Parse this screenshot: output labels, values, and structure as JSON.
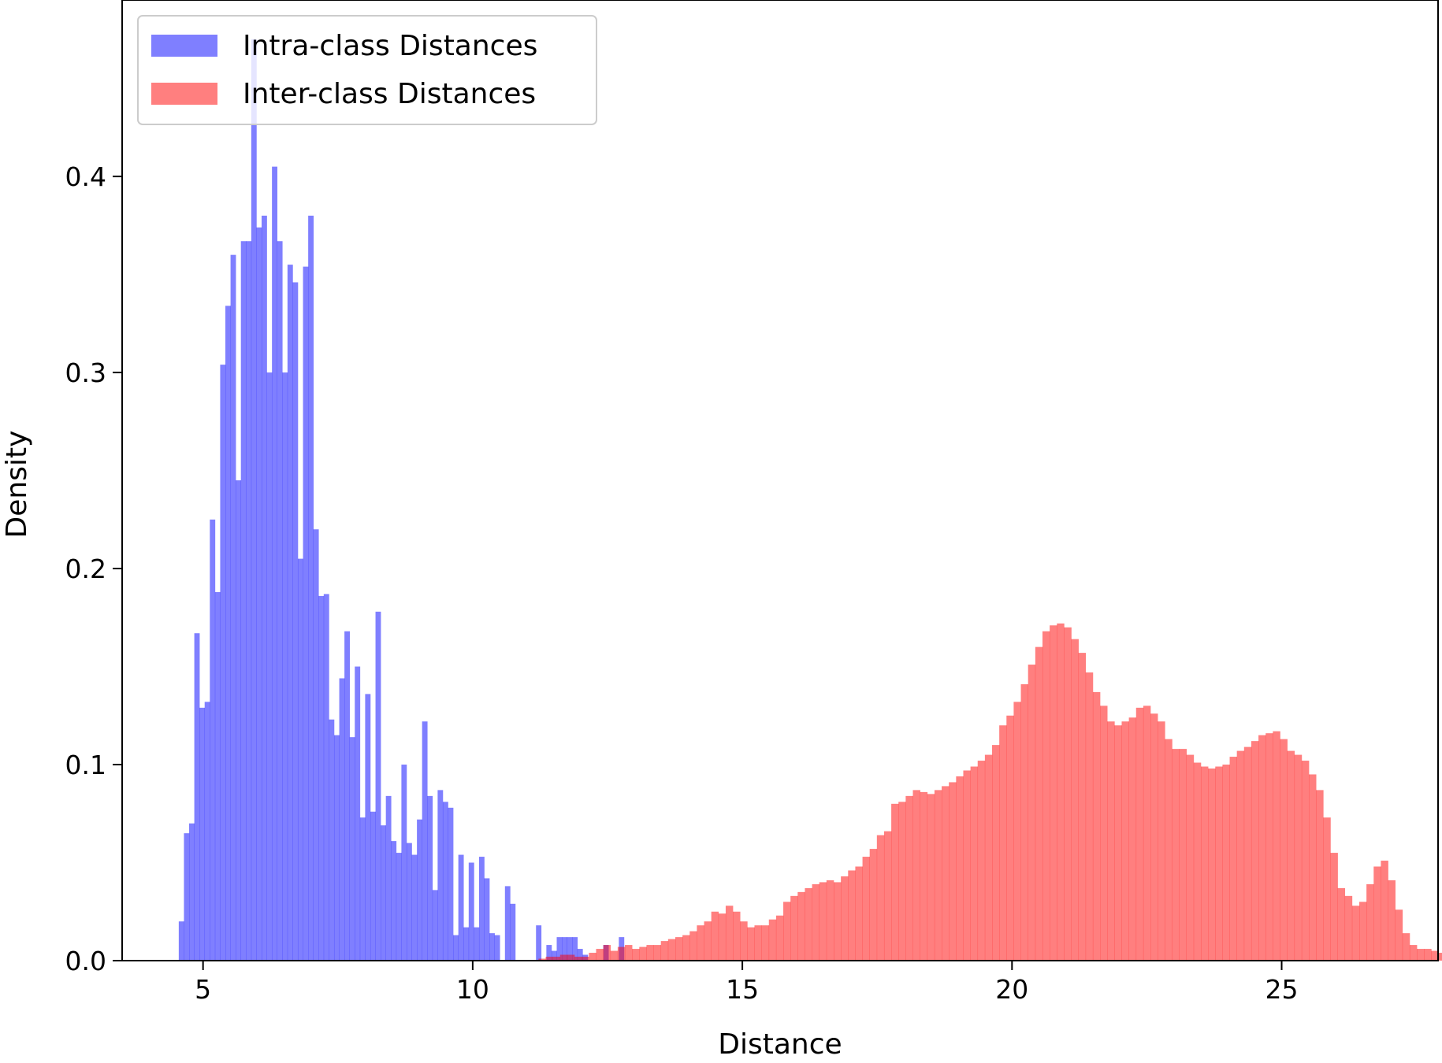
{
  "chart_data": {
    "type": "histogram",
    "xlabel": "Distance",
    "ylabel": "Density",
    "xlim": [
      3.5,
      27.9
    ],
    "ylim": [
      0,
      0.49
    ],
    "xticks": [
      5,
      10,
      15,
      20,
      25
    ],
    "yticks": [
      0.0,
      0.1,
      0.2,
      0.3,
      0.4
    ],
    "legend_position": "top-left",
    "grid": false,
    "series": [
      {
        "name": "Intra-class Distances",
        "color": "#0000ff",
        "alpha": 0.5,
        "bin_start": 4.55,
        "bin_width": 0.096,
        "values": [
          0.02,
          0.065,
          0.07,
          0.167,
          0.129,
          0.132,
          0.225,
          0.188,
          0.304,
          0.334,
          0.36,
          0.245,
          0.367,
          0.367,
          0.47,
          0.374,
          0.38,
          0.3,
          0.405,
          0.367,
          0.3,
          0.355,
          0.346,
          0.205,
          0.354,
          0.38,
          0.22,
          0.186,
          0.187,
          0.123,
          0.115,
          0.144,
          0.168,
          0.114,
          0.15,
          0.073,
          0.136,
          0.076,
          0.178,
          0.069,
          0.084,
          0.061,
          0.055,
          0.1,
          0.06,
          0.054,
          0.072,
          0.122,
          0.084,
          0.036,
          0.087,
          0.081,
          0.078,
          0.013,
          0.054,
          0.017,
          0.05,
          0.017,
          0.053,
          0.042,
          0.014,
          0.013,
          0.0,
          0.038,
          0.029,
          0.0,
          0.0,
          0.0,
          0.0,
          0.018,
          0.0,
          0.008,
          0.005,
          0.012,
          0.012,
          0.012,
          0.012,
          0.006,
          0.003,
          0.0,
          0.0,
          0.0,
          0.008,
          0.0,
          0.0,
          0.012
        ]
      },
      {
        "name": "Inter-class Distances",
        "color": "#ff0000",
        "alpha": 0.5,
        "bin_start": 11.22,
        "bin_width": 0.1335,
        "values": [
          0.001,
          0.002,
          0.002,
          0.003,
          0.003,
          0.002,
          0.002,
          0.004,
          0.006,
          0.008,
          0.005,
          0.007,
          0.008,
          0.006,
          0.007,
          0.008,
          0.008,
          0.01,
          0.011,
          0.012,
          0.013,
          0.015,
          0.018,
          0.02,
          0.025,
          0.024,
          0.028,
          0.025,
          0.02,
          0.017,
          0.018,
          0.018,
          0.021,
          0.023,
          0.03,
          0.033,
          0.035,
          0.037,
          0.039,
          0.04,
          0.041,
          0.04,
          0.043,
          0.046,
          0.048,
          0.053,
          0.057,
          0.064,
          0.066,
          0.08,
          0.081,
          0.084,
          0.087,
          0.086,
          0.085,
          0.087,
          0.089,
          0.091,
          0.094,
          0.097,
          0.099,
          0.102,
          0.105,
          0.11,
          0.12,
          0.125,
          0.132,
          0.141,
          0.151,
          0.16,
          0.168,
          0.171,
          0.172,
          0.17,
          0.164,
          0.157,
          0.147,
          0.137,
          0.13,
          0.122,
          0.12,
          0.122,
          0.124,
          0.129,
          0.13,
          0.126,
          0.122,
          0.113,
          0.108,
          0.108,
          0.105,
          0.101,
          0.099,
          0.098,
          0.099,
          0.1,
          0.104,
          0.107,
          0.109,
          0.112,
          0.115,
          0.116,
          0.117,
          0.113,
          0.107,
          0.105,
          0.102,
          0.095,
          0.087,
          0.073,
          0.055,
          0.037,
          0.033,
          0.028,
          0.03,
          0.039,
          0.048,
          0.051,
          0.041,
          0.026,
          0.014,
          0.008,
          0.006,
          0.006,
          0.005,
          0.004,
          0.003,
          0.002,
          0.001,
          0.001,
          0.001,
          0.001,
          0.0,
          0.0,
          0.0
        ]
      }
    ]
  }
}
